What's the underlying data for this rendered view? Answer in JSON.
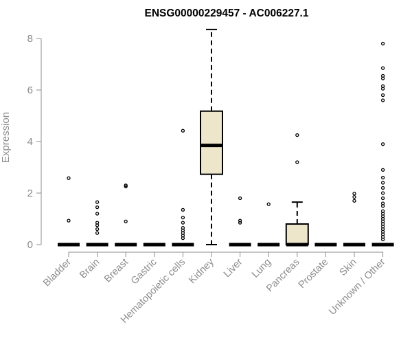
{
  "chart_data": {
    "type": "boxplot",
    "title": "ENSG00000229457 - AC006227.1",
    "xlabel": "",
    "ylabel": "Expression",
    "ylim": [
      0,
      8
    ],
    "yticks": [
      0,
      2,
      4,
      6,
      8
    ],
    "grid": false,
    "box_fill": "#ede6cb",
    "box_stroke": "#000000",
    "axis_color": "#8c8c8c",
    "categories": [
      "Bladder",
      "Brain",
      "Breast",
      "Gastric",
      "Hematopoietic cells",
      "Kidney",
      "Liver",
      "Lung",
      "Pancreas",
      "Prostate",
      "Skin",
      "Unknown / Other"
    ],
    "series": [
      {
        "category": "Bladder",
        "q1": 0,
        "median": 0,
        "q3": 0,
        "whisker_low": 0,
        "whisker_high": 0,
        "outliers": [
          0.93,
          2.58
        ]
      },
      {
        "category": "Brain",
        "q1": 0,
        "median": 0,
        "q3": 0,
        "whisker_low": 0,
        "whisker_high": 0,
        "outliers": [
          0.45,
          0.6,
          0.75,
          0.85,
          1.2,
          1.45,
          1.65
        ]
      },
      {
        "category": "Breast",
        "q1": 0,
        "median": 0,
        "q3": 0,
        "whisker_low": 0,
        "whisker_high": 0,
        "outliers": [
          0.9,
          2.26,
          2.3
        ]
      },
      {
        "category": "Gastric",
        "q1": 0,
        "median": 0,
        "q3": 0,
        "whisker_low": 0,
        "whisker_high": 0,
        "outliers": []
      },
      {
        "category": "Hematopoietic cells",
        "q1": 0,
        "median": 0,
        "q3": 0,
        "whisker_low": 0,
        "whisker_high": 0,
        "outliers": [
          0.25,
          0.35,
          0.45,
          0.55,
          0.65,
          0.85,
          1.05,
          1.35,
          4.42
        ]
      },
      {
        "category": "Kidney",
        "q1": 2.73,
        "median": 3.85,
        "q3": 5.18,
        "whisker_low": 0,
        "whisker_high": 8.35,
        "outliers": []
      },
      {
        "category": "Liver",
        "q1": 0,
        "median": 0,
        "q3": 0,
        "whisker_low": 0,
        "whisker_high": 0,
        "outliers": [
          0.85,
          0.93,
          1.8
        ]
      },
      {
        "category": "Lung",
        "q1": 0,
        "median": 0,
        "q3": 0,
        "whisker_low": 0,
        "whisker_high": 0,
        "outliers": [
          1.57
        ]
      },
      {
        "category": "Pancreas",
        "q1": 0,
        "median": 0,
        "q3": 0.8,
        "whisker_low": 0,
        "whisker_high": 1.65,
        "outliers": [
          3.2,
          4.25
        ]
      },
      {
        "category": "Prostate",
        "q1": 0,
        "median": 0,
        "q3": 0,
        "whisker_low": 0,
        "whisker_high": 0,
        "outliers": []
      },
      {
        "category": "Skin",
        "q1": 0,
        "median": 0,
        "q3": 0,
        "whisker_low": 0,
        "whisker_high": 0,
        "outliers": [
          1.7,
          1.85,
          1.98
        ]
      },
      {
        "category": "Unknown / Other",
        "q1": 0,
        "median": 0,
        "q3": 0,
        "whisker_low": 0,
        "whisker_high": 0,
        "outliers": [
          0.2,
          0.3,
          0.4,
          0.5,
          0.6,
          0.7,
          0.8,
          0.9,
          1.0,
          1.1,
          1.2,
          1.3,
          1.5,
          1.6,
          1.8,
          2.0,
          2.2,
          2.4,
          2.6,
          2.9,
          3.9,
          5.6,
          5.8,
          6.05,
          6.15,
          6.45,
          6.55,
          6.85,
          7.8
        ]
      }
    ]
  }
}
